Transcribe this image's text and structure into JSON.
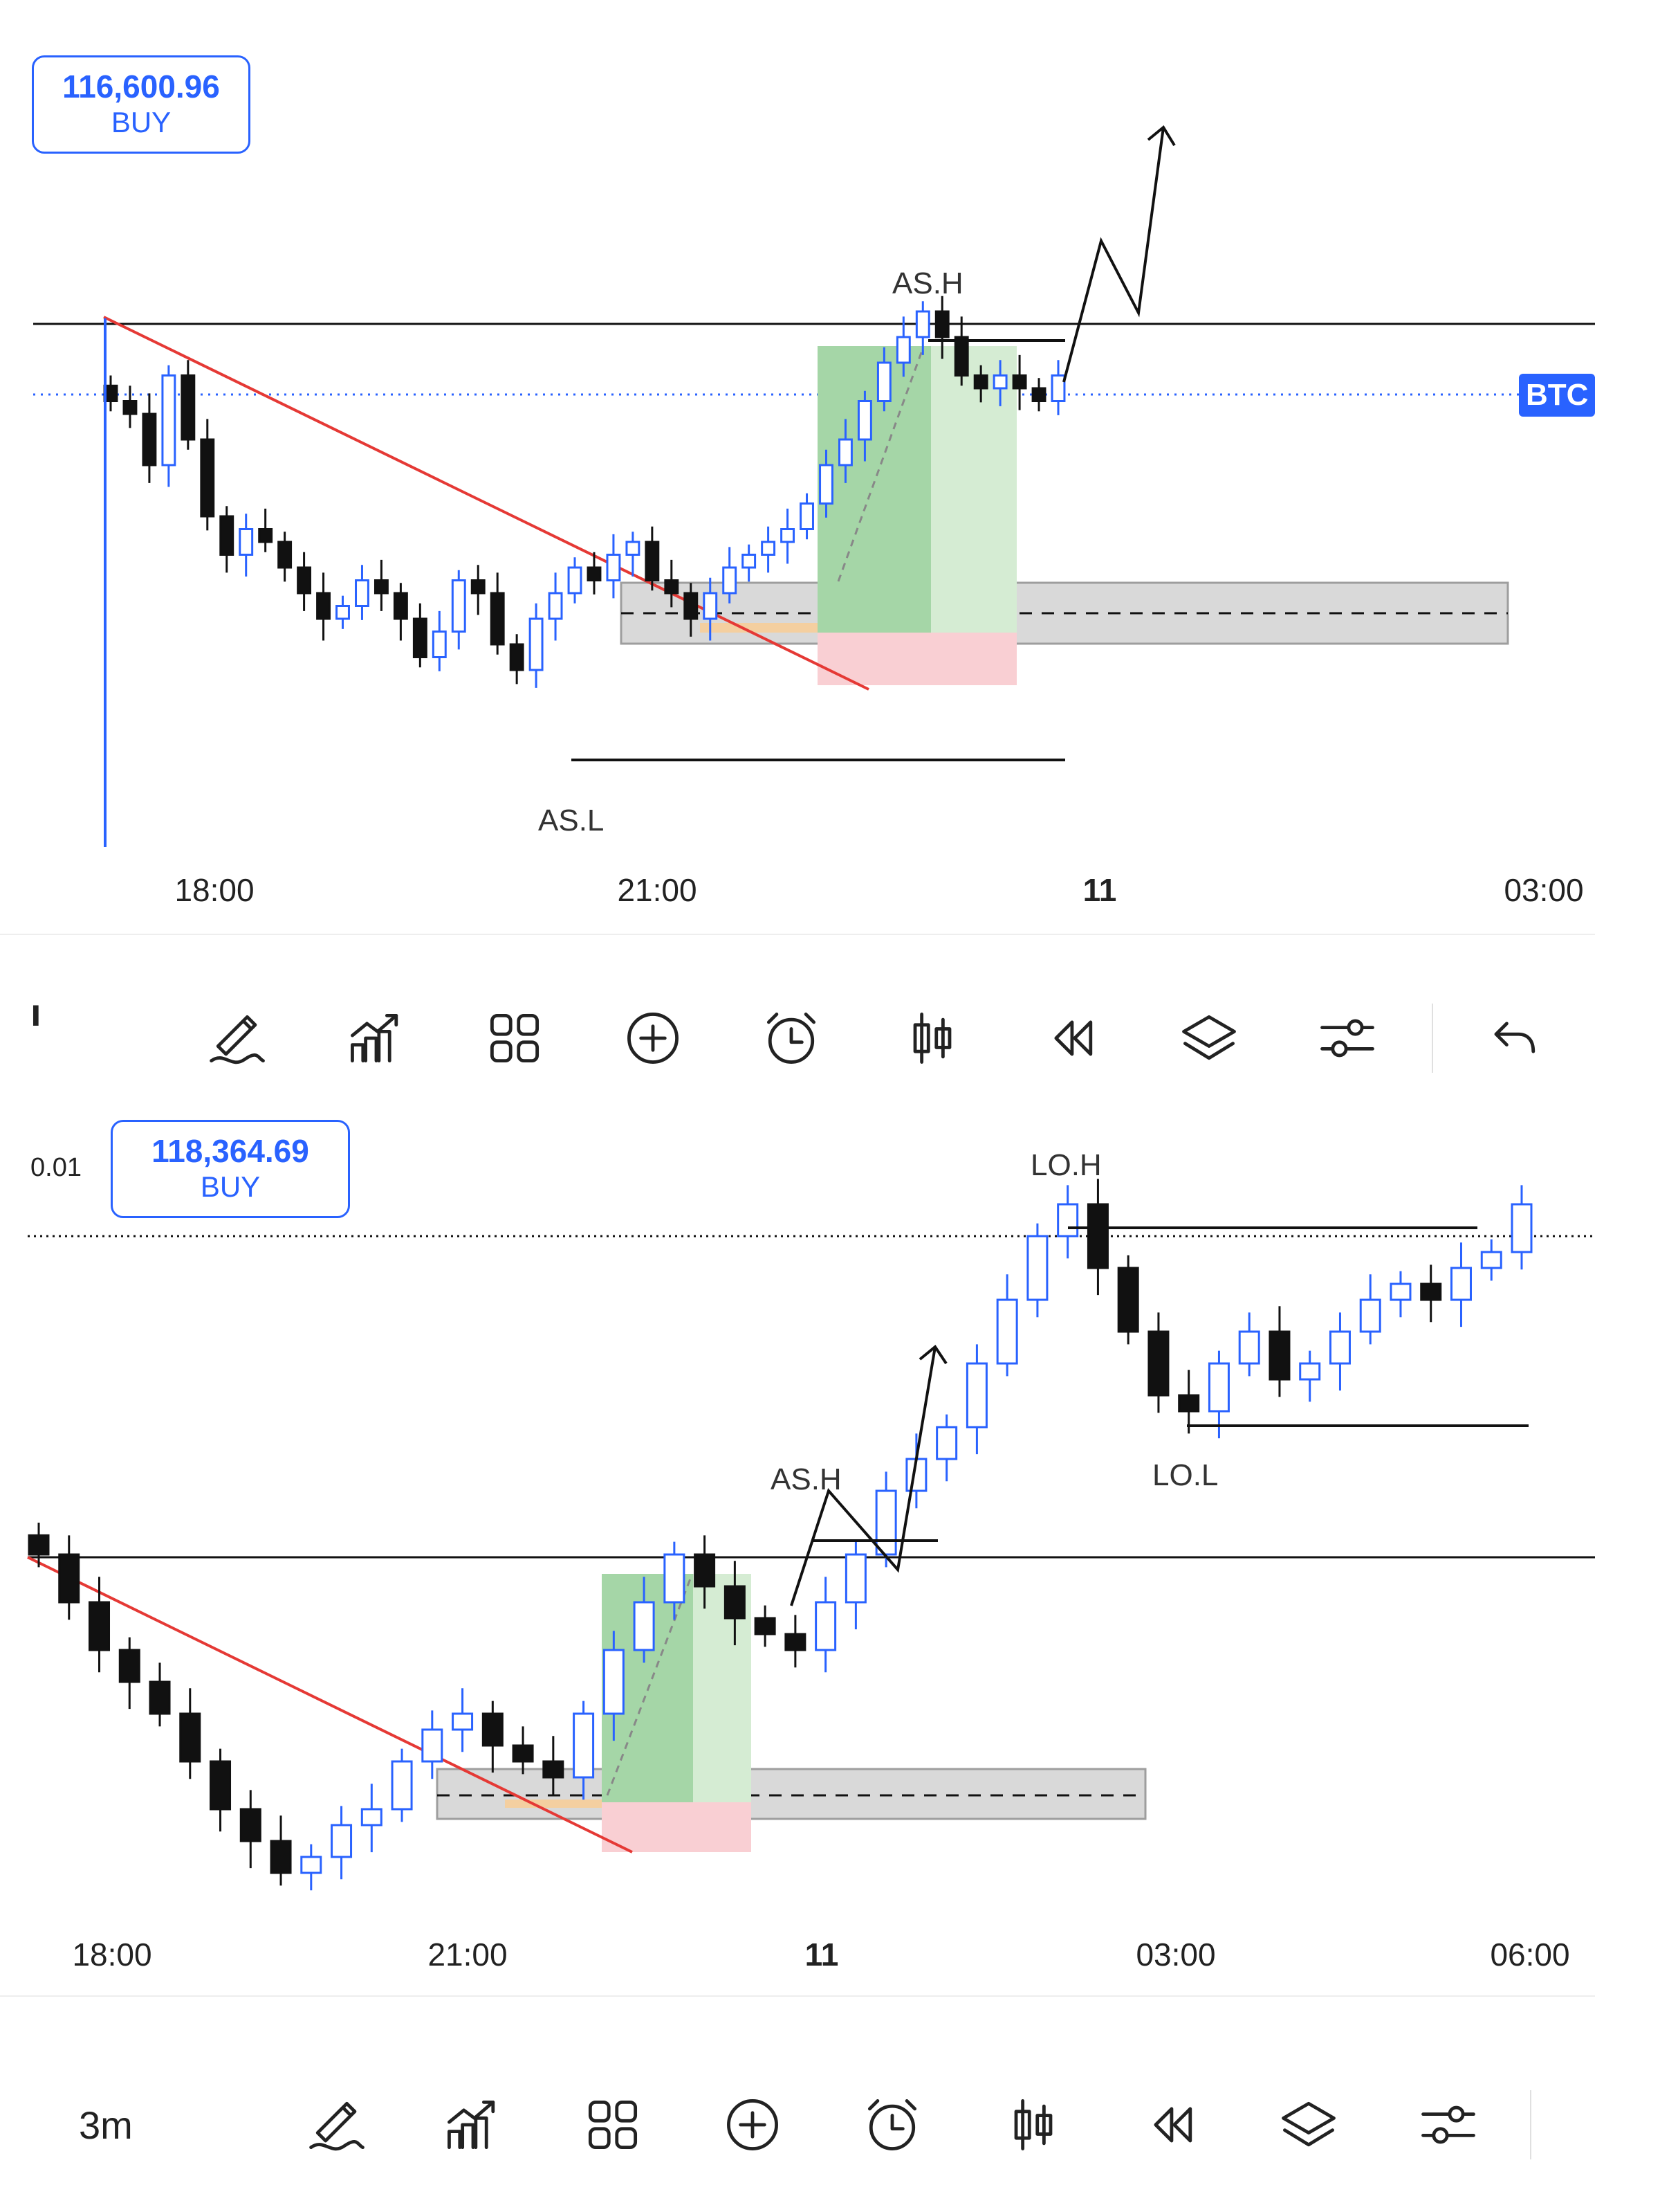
{
  "panels": [
    {
      "price_box": {
        "value": "116,600.96",
        "side": "BUY"
      },
      "symbol_tag": "BTC",
      "time_labels": [
        "18:00",
        "21:00",
        "11",
        "03:00"
      ],
      "annotations": {
        "high": "AS.H",
        "low": "AS.L"
      }
    },
    {
      "price_box": {
        "value": "118,364.69",
        "side": "BUY"
      },
      "axis_value": "0.01",
      "time_labels": [
        "18:00",
        "21:00",
        "11",
        "03:00",
        "06:00"
      ],
      "annotations": {
        "high": "AS.H",
        "low_high": "LO.H",
        "low_low": "LO.L"
      }
    }
  ],
  "toolbar": {
    "timeframe": "3m",
    "icons": [
      "draw-icon",
      "indicators-icon",
      "layout-grid-icon",
      "add-icon",
      "alert-icon",
      "candles-icon",
      "replay-icon",
      "layers-icon",
      "settings-icon",
      "undo-icon"
    ]
  },
  "colors": {
    "accent": "#2962ff",
    "trendline": "#e53935",
    "bull": "#2962ff",
    "bear": "#111111"
  },
  "chart_data": [
    {
      "type": "candlestick",
      "title": "",
      "x_ticks": [
        "18:00",
        "21:00",
        "11",
        "03:00"
      ],
      "series": [
        {
          "closes": [
            117250,
            117200,
            117000,
            117350,
            117100,
            116800,
            116650,
            116750,
            116700,
            116600,
            116500,
            116400,
            116450,
            116550,
            116500,
            116400,
            116250,
            116350,
            116550,
            116500,
            116300,
            116200,
            116400,
            116500,
            116600,
            116550,
            116650,
            116700,
            116550,
            116500,
            116400,
            116500,
            116600,
            116650,
            116700,
            116750,
            116850,
            117000,
            117100,
            117250,
            117400,
            117500,
            117600,
            117500,
            117350,
            117300,
            117350,
            117300,
            117250,
            117350
          ]
        }
      ],
      "annotations": [
        "AS.H",
        "AS.L"
      ]
    },
    {
      "type": "candlestick",
      "title": "",
      "x_ticks": [
        "18:00",
        "21:00",
        "11",
        "03:00",
        "06:00"
      ],
      "series": [
        {
          "closes": [
            117300,
            117150,
            117000,
            116900,
            116800,
            116650,
            116500,
            116400,
            116300,
            116350,
            116450,
            116500,
            116650,
            116750,
            116800,
            116700,
            116650,
            116600,
            116800,
            117000,
            117150,
            117300,
            117200,
            117100,
            117050,
            117000,
            117150,
            117300,
            117500,
            117600,
            117700,
            117900,
            118100,
            118300,
            118400,
            118200,
            118000,
            117800,
            117750,
            117900,
            118000,
            117850,
            117900,
            118000,
            118100,
            118150,
            118100,
            118200,
            118250,
            118400
          ]
        }
      ],
      "annotations": [
        "AS.H",
        "LO.H",
        "LO.L"
      ]
    }
  ]
}
